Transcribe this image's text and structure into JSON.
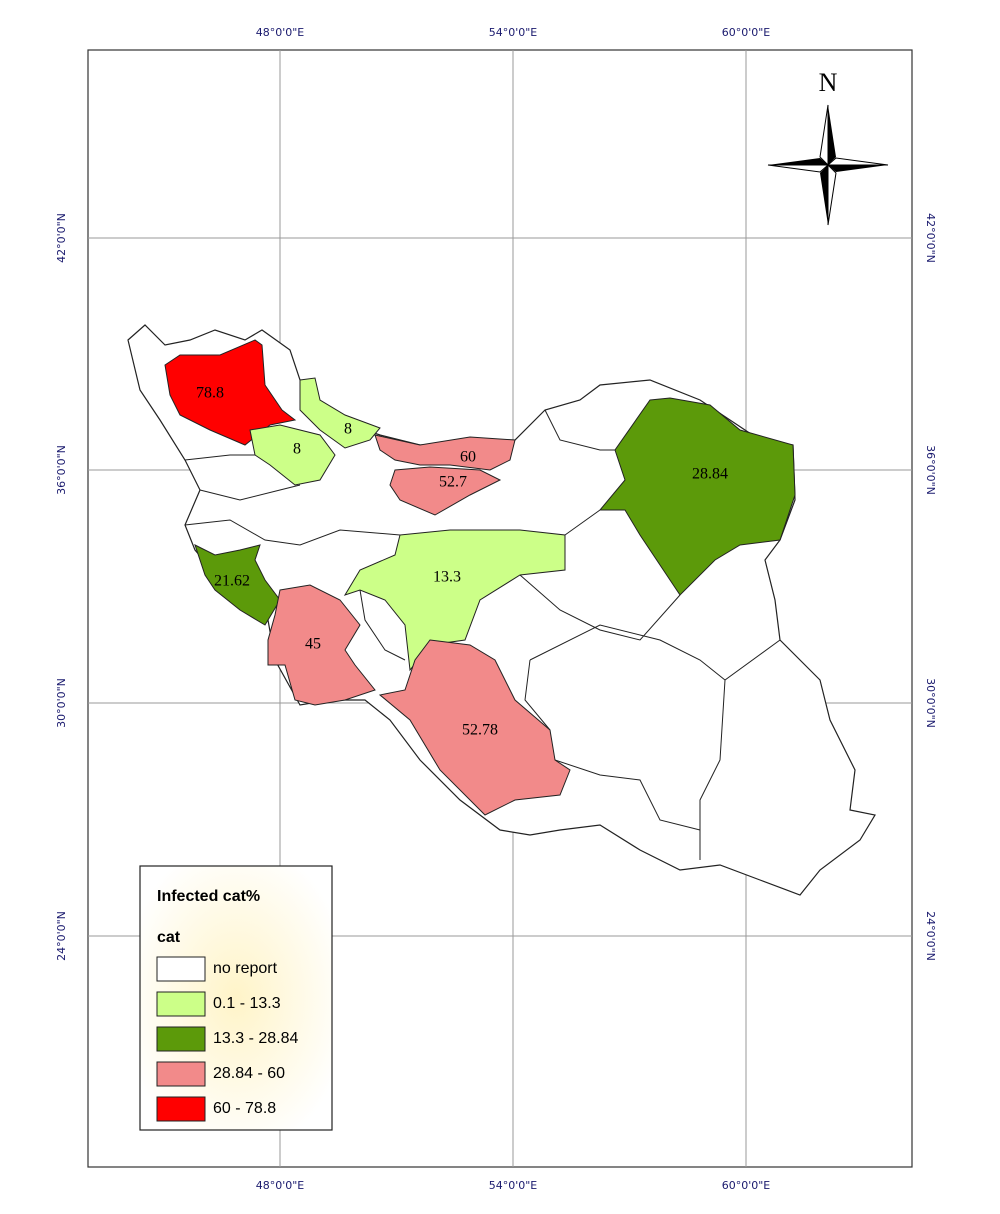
{
  "map": {
    "grid_labels": {
      "top": [
        "48°0'0\"E",
        "54°0'0\"E",
        "60°0'0\"E"
      ],
      "bottom": [
        "48°0'0\"E",
        "54°0'0\"E",
        "60°0'0\"E"
      ],
      "left": [
        "42°0'0\"N",
        "36°0'0\"N",
        "30°0'0\"N",
        "24°0'0\"N"
      ],
      "right": [
        "42°0'0\"N",
        "36°0'0\"N",
        "30°0'0\"N",
        "24°0'0\"N"
      ]
    },
    "north": "N",
    "regions": [
      {
        "label": "78.8",
        "color": "#ff0000"
      },
      {
        "label": "8",
        "color": "#ccff88"
      },
      {
        "label": "8",
        "color": "#ccff88"
      },
      {
        "label": "60",
        "color": "#f28a8a"
      },
      {
        "label": "52.7",
        "color": "#f28a8a"
      },
      {
        "label": "28.84",
        "color": "#5c9a0a"
      },
      {
        "label": "21.62",
        "color": "#5c9a0a"
      },
      {
        "label": "13.3",
        "color": "#ccff88"
      },
      {
        "label": "45",
        "color": "#f28a8a"
      },
      {
        "label": "52.78",
        "color": "#f28a8a"
      }
    ],
    "legend": {
      "title": "Infected cat%",
      "subtitle": "cat",
      "items": [
        {
          "label": "no report",
          "color": "#ffffff"
        },
        {
          "label": "0.1 - 13.3",
          "color": "#ccff88"
        },
        {
          "label": "13.3 - 28.84",
          "color": "#5c9a0a"
        },
        {
          "label": "28.84 - 60",
          "color": "#f28a8a"
        },
        {
          "label": "60 - 78.8",
          "color": "#ff0000"
        }
      ]
    }
  }
}
